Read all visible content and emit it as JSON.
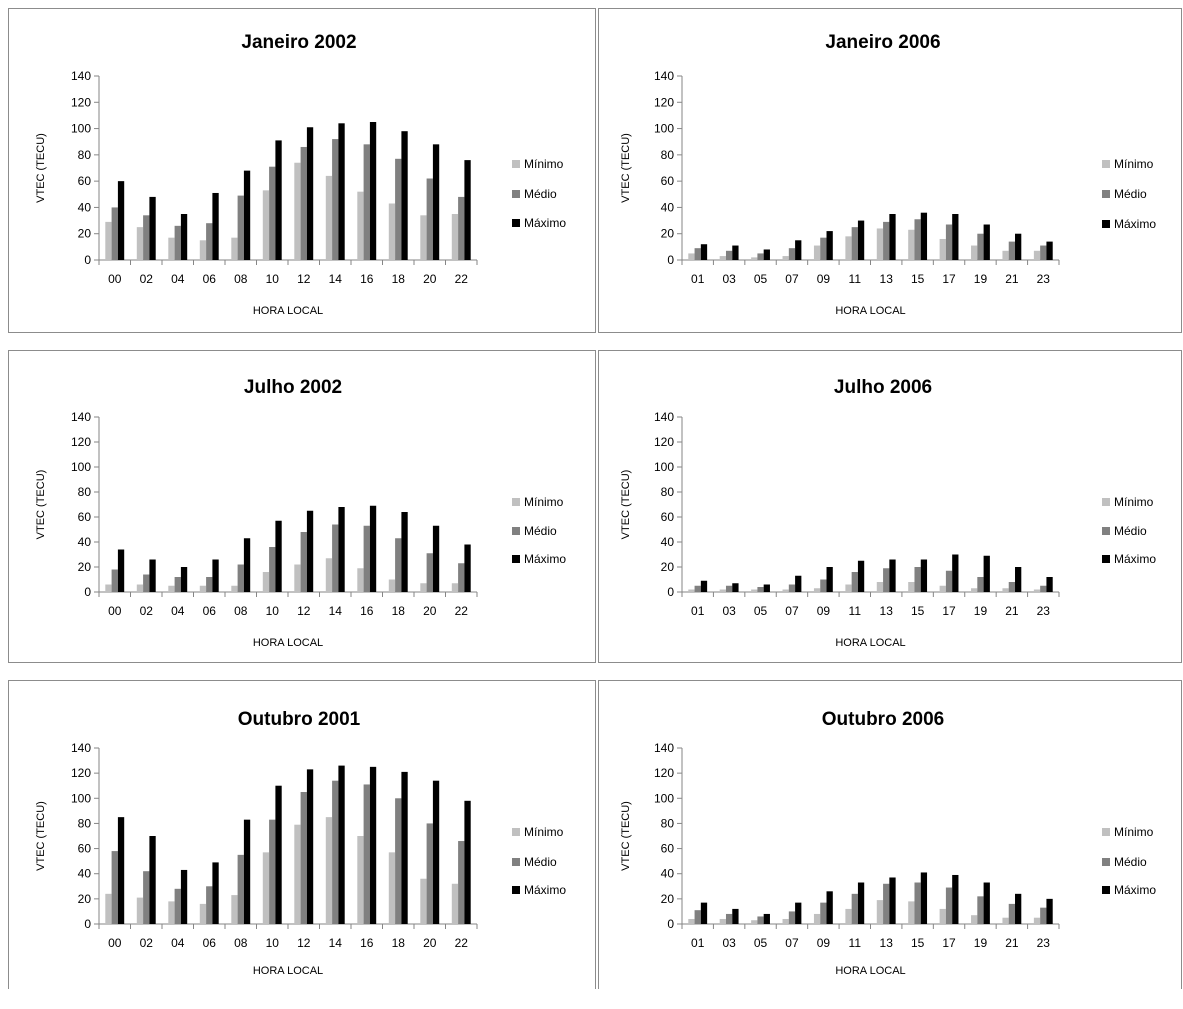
{
  "chart_data": [
    {
      "type": "bar",
      "title": "Janeiro 2002",
      "xlabel": "HORA LOCAL",
      "ylabel": "VTEC (TECU)",
      "ylim": [
        0,
        140
      ],
      "yticks": [
        "0",
        "20",
        "40",
        "60",
        "80",
        "100",
        "120",
        "140"
      ],
      "categories": [
        "00",
        "02",
        "04",
        "06",
        "08",
        "10",
        "12",
        "14",
        "16",
        "18",
        "20",
        "22"
      ],
      "legend_position": "right",
      "series": [
        {
          "name": "Mínimo",
          "color": "#c0c0c0",
          "values": [
            29,
            25,
            17,
            15,
            17,
            53,
            74,
            64,
            52,
            43,
            34,
            35
          ]
        },
        {
          "name": "Médio",
          "color": "#808080",
          "values": [
            40,
            34,
            26,
            28,
            49,
            71,
            86,
            92,
            88,
            77,
            62,
            48
          ]
        },
        {
          "name": "Máximo",
          "color": "#000000",
          "values": [
            60,
            48,
            35,
            51,
            68,
            91,
            101,
            104,
            105,
            98,
            88,
            76
          ]
        }
      ]
    },
    {
      "type": "bar",
      "title": "Janeiro 2006",
      "xlabel": "HORA LOCAL",
      "ylabel": "VTEC (TECU)",
      "ylim": [
        0,
        140
      ],
      "yticks": [
        "0",
        "20",
        "40",
        "60",
        "80",
        "100",
        "120",
        "140"
      ],
      "categories": [
        "01",
        "03",
        "05",
        "07",
        "09",
        "11",
        "13",
        "15",
        "17",
        "19",
        "21",
        "23"
      ],
      "legend_position": "right",
      "series": [
        {
          "name": "Mínimo",
          "color": "#c0c0c0",
          "values": [
            5,
            3,
            2,
            3,
            11,
            18,
            24,
            23,
            16,
            11,
            7,
            7
          ]
        },
        {
          "name": "Médio",
          "color": "#808080",
          "values": [
            9,
            7,
            5,
            9,
            17,
            25,
            29,
            31,
            27,
            20,
            14,
            11
          ]
        },
        {
          "name": "Máximo",
          "color": "#000000",
          "values": [
            12,
            11,
            8,
            15,
            22,
            30,
            35,
            36,
            35,
            27,
            20,
            14
          ]
        }
      ]
    },
    {
      "type": "bar",
      "title": "Julho 2002",
      "xlabel": "HORA LOCAL",
      "ylabel": "VTEC (TECU)",
      "ylim": [
        0,
        140
      ],
      "yticks": [
        "0",
        "20",
        "40",
        "60",
        "80",
        "100",
        "120",
        "140"
      ],
      "categories": [
        "00",
        "02",
        "04",
        "06",
        "08",
        "10",
        "12",
        "14",
        "16",
        "18",
        "20",
        "22"
      ],
      "legend_position": "right",
      "series": [
        {
          "name": "Mínimo",
          "color": "#c0c0c0",
          "values": [
            6,
            6,
            5,
            5,
            5,
            16,
            22,
            27,
            19,
            10,
            7,
            7
          ]
        },
        {
          "name": "Médio",
          "color": "#808080",
          "values": [
            18,
            14,
            12,
            12,
            22,
            36,
            48,
            54,
            53,
            43,
            31,
            23
          ]
        },
        {
          "name": "Máximo",
          "color": "#000000",
          "values": [
            34,
            26,
            20,
            26,
            43,
            57,
            65,
            68,
            69,
            64,
            53,
            38
          ]
        }
      ]
    },
    {
      "type": "bar",
      "title": "Julho 2006",
      "xlabel": "HORA LOCAL",
      "ylabel": "VTEC (TECU)",
      "ylim": [
        0,
        140
      ],
      "yticks": [
        "0",
        "20",
        "40",
        "60",
        "80",
        "100",
        "120",
        "140"
      ],
      "categories": [
        "01",
        "03",
        "05",
        "07",
        "09",
        "11",
        "13",
        "15",
        "17",
        "19",
        "21",
        "23"
      ],
      "legend_position": "right",
      "series": [
        {
          "name": "Mínimo",
          "color": "#c0c0c0",
          "values": [
            2,
            2,
            2,
            2,
            3,
            6,
            8,
            8,
            5,
            3,
            3,
            2
          ]
        },
        {
          "name": "Médio",
          "color": "#808080",
          "values": [
            5,
            5,
            4,
            6,
            10,
            16,
            19,
            20,
            17,
            12,
            8,
            5
          ]
        },
        {
          "name": "Máximo",
          "color": "#000000",
          "values": [
            9,
            7,
            6,
            13,
            20,
            25,
            26,
            26,
            30,
            29,
            20,
            12
          ]
        }
      ]
    },
    {
      "type": "bar",
      "title": "Outubro 2001",
      "xlabel": "HORA LOCAL",
      "ylabel": "VTEC (TECU)",
      "ylim": [
        0,
        140
      ],
      "yticks": [
        "0",
        "20",
        "40",
        "60",
        "80",
        "100",
        "120",
        "140"
      ],
      "categories": [
        "00",
        "02",
        "04",
        "06",
        "08",
        "10",
        "12",
        "14",
        "16",
        "18",
        "20",
        "22"
      ],
      "legend_position": "right",
      "series": [
        {
          "name": "Mínimo",
          "color": "#c0c0c0",
          "values": [
            24,
            21,
            18,
            16,
            23,
            57,
            79,
            85,
            70,
            57,
            36,
            32
          ]
        },
        {
          "name": "Médio",
          "color": "#808080",
          "values": [
            58,
            42,
            28,
            30,
            55,
            83,
            105,
            114,
            111,
            100,
            80,
            66
          ]
        },
        {
          "name": "Máximo",
          "color": "#000000",
          "values": [
            85,
            70,
            43,
            49,
            83,
            110,
            123,
            126,
            125,
            121,
            114,
            98
          ]
        }
      ]
    },
    {
      "type": "bar",
      "title": "Outubro 2006",
      "xlabel": "HORA LOCAL",
      "ylabel": "VTEC (TECU)",
      "ylim": [
        0,
        140
      ],
      "yticks": [
        "0",
        "20",
        "40",
        "60",
        "80",
        "100",
        "120",
        "140"
      ],
      "categories": [
        "01",
        "03",
        "05",
        "07",
        "09",
        "11",
        "13",
        "15",
        "17",
        "19",
        "21",
        "23"
      ],
      "legend_position": "right",
      "series": [
        {
          "name": "Mínimo",
          "color": "#c0c0c0",
          "values": [
            4,
            4,
            3,
            4,
            8,
            12,
            19,
            18,
            12,
            7,
            5,
            5
          ]
        },
        {
          "name": "Médio",
          "color": "#808080",
          "values": [
            11,
            8,
            6,
            10,
            17,
            24,
            32,
            33,
            29,
            22,
            16,
            13
          ]
        },
        {
          "name": "Máximo",
          "color": "#000000",
          "values": [
            17,
            12,
            8,
            17,
            26,
            33,
            37,
            41,
            39,
            33,
            24,
            20
          ]
        }
      ]
    }
  ]
}
